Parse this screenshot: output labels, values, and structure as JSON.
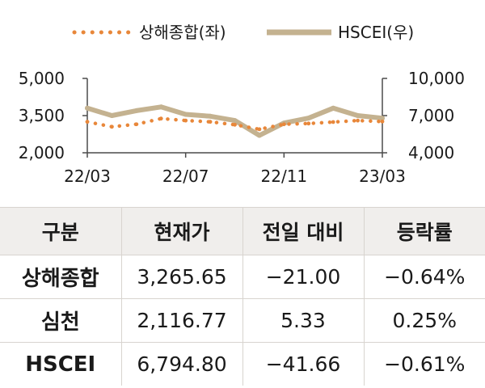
{
  "chart_data": {
    "type": "line",
    "legend": {
      "placement": "top-center"
    },
    "x_ticks": [
      "22/03",
      "22/07",
      "22/11",
      "23/03"
    ],
    "y_left": {
      "ticks": [
        "5,000",
        "3,500",
        "2,000"
      ],
      "ylim": [
        2000,
        5000
      ]
    },
    "y_right": {
      "ticks": [
        "10,000",
        "7,000",
        "4,000"
      ],
      "ylim": [
        4000,
        10000
      ]
    },
    "grid": false,
    "series": [
      {
        "name": "상해종합(좌)",
        "axis": "left",
        "style": "dotted",
        "color": "#e8873a",
        "x": [
          "22/03",
          "22/04",
          "22/05",
          "22/06",
          "22/07",
          "22/08",
          "22/09",
          "22/10",
          "22/11",
          "22/12",
          "23/01",
          "23/02",
          "23/03"
        ],
        "values": [
          3250,
          3050,
          3150,
          3380,
          3300,
          3250,
          3130,
          2950,
          3150,
          3180,
          3240,
          3300,
          3260
        ]
      },
      {
        "name": "HSCEI(우)",
        "axis": "right",
        "style": "solid",
        "color": "#c4b290",
        "x": [
          "22/03",
          "22/04",
          "22/05",
          "22/06",
          "22/07",
          "22/08",
          "22/09",
          "22/10",
          "22/11",
          "22/12",
          "23/01",
          "23/02",
          "23/03"
        ],
        "values": [
          7600,
          7000,
          7400,
          7700,
          7100,
          6950,
          6600,
          5400,
          6400,
          6800,
          7600,
          7000,
          6790
        ]
      }
    ]
  },
  "table": {
    "headers": [
      "구분",
      "현재가",
      "전일 대비",
      "등락률"
    ],
    "rows": [
      [
        "상해종합",
        "3,265.65",
        "−21.00",
        "−0.64%"
      ],
      [
        "심천",
        "2,116.77",
        "5.33",
        "0.25%"
      ],
      [
        "HSCEI",
        "6,794.80",
        "−41.66",
        "−0.61%"
      ]
    ]
  }
}
